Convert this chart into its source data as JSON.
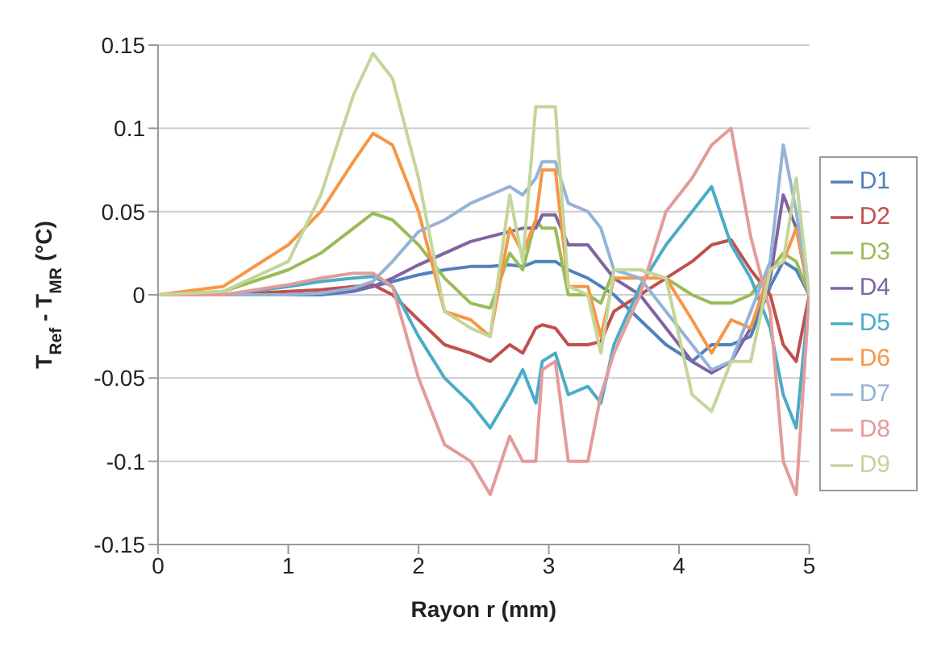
{
  "chart_data": {
    "type": "line",
    "xlabel": "Rayon r (mm)",
    "ylabel": "T$_{Ref}$ - T$_{MR}$ (°C)",
    "x": [
      0,
      0.5,
      1,
      1.25,
      1.5,
      1.65,
      1.8,
      2,
      2.2,
      2.4,
      2.55,
      2.7,
      2.8,
      2.9,
      2.95,
      3.05,
      3.15,
      3.3,
      3.4,
      3.5,
      3.7,
      3.9,
      4.1,
      4.25,
      4.4,
      4.55,
      4.7,
      4.8,
      4.9,
      5
    ],
    "series": [
      {
        "name": "D1",
        "color": "#4f81bd",
        "values": [
          0,
          0,
          0,
          0,
          0.002,
          0.005,
          0.008,
          0.012,
          0.015,
          0.017,
          0.017,
          0.018,
          0.017,
          0.02,
          0.02,
          0.02,
          0.015,
          0.01,
          0.005,
          0,
          -0.015,
          -0.03,
          -0.04,
          -0.03,
          -0.03,
          -0.025,
          0.005,
          0.02,
          0.015,
          0
        ]
      },
      {
        "name": "D2",
        "color": "#c0504d",
        "values": [
          0,
          0,
          0.002,
          0.003,
          0.005,
          0.006,
          0,
          -0.015,
          -0.03,
          -0.035,
          -0.04,
          -0.03,
          -0.035,
          -0.02,
          -0.018,
          -0.02,
          -0.03,
          -0.03,
          -0.028,
          -0.01,
          0,
          0.01,
          0.02,
          0.03,
          0.033,
          0.015,
          0,
          -0.03,
          -0.04,
          0
        ]
      },
      {
        "name": "D3",
        "color": "#9bbb59",
        "values": [
          0,
          0.002,
          0.015,
          0.025,
          0.04,
          0.049,
          0.045,
          0.03,
          0.01,
          -0.005,
          -0.008,
          0.025,
          0.015,
          0.045,
          0.04,
          0.04,
          0,
          0,
          -0.005,
          0.015,
          0.015,
          0.01,
          0,
          -0.005,
          -0.005,
          0,
          0.015,
          0.025,
          0.02,
          0
        ]
      },
      {
        "name": "D4",
        "color": "#8064a2",
        "values": [
          0,
          0,
          0,
          0.001,
          0.003,
          0.005,
          0.01,
          0.018,
          0.025,
          0.032,
          0.035,
          0.038,
          0.04,
          0.04,
          0.048,
          0.048,
          0.03,
          0.03,
          0.02,
          0.01,
          0,
          -0.02,
          -0.04,
          -0.047,
          -0.04,
          -0.02,
          0.01,
          0.06,
          0.04,
          0
        ]
      },
      {
        "name": "D5",
        "color": "#4bacc6",
        "values": [
          0,
          0,
          0.005,
          0.008,
          0.01,
          0.011,
          0.005,
          -0.025,
          -0.05,
          -0.065,
          -0.08,
          -0.06,
          -0.045,
          -0.065,
          -0.04,
          -0.035,
          -0.06,
          -0.055,
          -0.065,
          -0.03,
          0.005,
          0.03,
          0.05,
          0.065,
          0.03,
          0.01,
          -0.02,
          -0.06,
          -0.08,
          0
        ]
      },
      {
        "name": "D6",
        "color": "#f79646",
        "values": [
          0,
          0.005,
          0.03,
          0.05,
          0.08,
          0.097,
          0.09,
          0.05,
          -0.01,
          -0.015,
          -0.025,
          0.04,
          0.025,
          0.045,
          0.075,
          0.075,
          0.005,
          0.005,
          -0.025,
          0.01,
          0.01,
          0.01,
          -0.015,
          -0.035,
          -0.015,
          -0.02,
          0.015,
          0.02,
          0.04,
          0
        ]
      },
      {
        "name": "D7",
        "color": "#95b3d7",
        "values": [
          0,
          0,
          0,
          0.001,
          0.004,
          0.008,
          0.02,
          0.038,
          0.045,
          0.055,
          0.06,
          0.065,
          0.06,
          0.07,
          0.08,
          0.08,
          0.055,
          0.05,
          0.04,
          0.015,
          0.01,
          -0.01,
          -0.03,
          -0.045,
          -0.04,
          -0.01,
          0.02,
          0.09,
          0.05,
          0
        ]
      },
      {
        "name": "D8",
        "color": "#e39b9b",
        "values": [
          0,
          0,
          0.006,
          0.01,
          0.013,
          0.013,
          0.005,
          -0.05,
          -0.09,
          -0.1,
          -0.12,
          -0.085,
          -0.1,
          -0.1,
          -0.045,
          -0.04,
          -0.1,
          -0.1,
          -0.06,
          -0.035,
          0,
          0.05,
          0.07,
          0.09,
          0.1,
          0.035,
          -0.01,
          -0.1,
          -0.12,
          0
        ]
      },
      {
        "name": "D9",
        "color": "#c3d69b",
        "values": [
          0,
          0.002,
          0.02,
          0.06,
          0.12,
          0.145,
          0.13,
          0.07,
          -0.01,
          -0.02,
          -0.025,
          0.06,
          0.02,
          0.113,
          0.113,
          0.113,
          0.005,
          0,
          -0.035,
          0.015,
          0.015,
          0.01,
          -0.06,
          -0.07,
          -0.04,
          -0.04,
          0.015,
          0.02,
          0.07,
          0
        ]
      }
    ],
    "xlim": [
      0,
      5
    ],
    "xticks": [
      0,
      1,
      2,
      3,
      4,
      5
    ],
    "ylim": [
      -0.15,
      0.15
    ],
    "yticks": [
      -0.15,
      -0.1,
      -0.05,
      0,
      0.05,
      0.1,
      0.15
    ],
    "grid": "y",
    "legend": "right",
    "marker": "none",
    "line_style": "solid"
  }
}
